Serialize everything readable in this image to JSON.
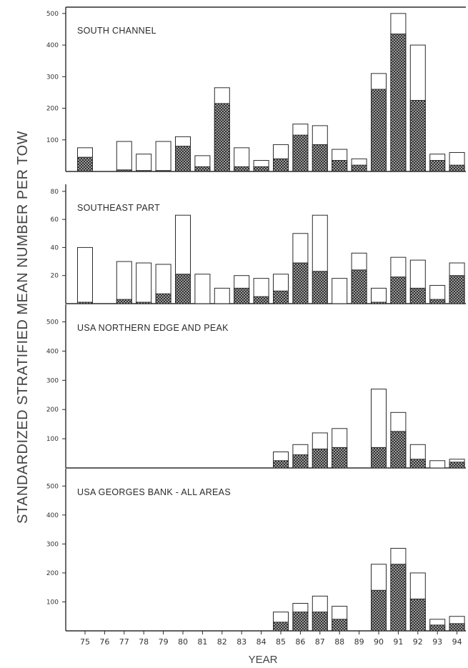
{
  "chart_data": {
    "type": "bar",
    "stacked": true,
    "ylabel": "STANDARDIZED STRATIFIED MEAN NUMBER PER TOW",
    "xlabel": "YEAR",
    "x": [
      "75",
      "76",
      "77",
      "78",
      "79",
      "80",
      "81",
      "82",
      "83",
      "84",
      "85",
      "86",
      "87",
      "88",
      "89",
      "90",
      "91",
      "92",
      "93",
      "94"
    ],
    "series_legend": [
      "hatched (lower portion)",
      "open (total)"
    ],
    "panels": [
      {
        "title": "SOUTH CHANNEL",
        "ylim": [
          0,
          520
        ],
        "yticks": [
          100,
          200,
          300,
          400,
          500
        ],
        "bars": [
          {
            "year": "75",
            "total": 75,
            "hatched": 45
          },
          {
            "year": "77",
            "total": 95,
            "hatched": 5
          },
          {
            "year": "78",
            "total": 55,
            "hatched": 3
          },
          {
            "year": "79",
            "total": 95,
            "hatched": 3
          },
          {
            "year": "80",
            "total": 110,
            "hatched": 80
          },
          {
            "year": "81",
            "total": 50,
            "hatched": 15
          },
          {
            "year": "82",
            "total": 265,
            "hatched": 215
          },
          {
            "year": "83",
            "total": 75,
            "hatched": 15
          },
          {
            "year": "84",
            "total": 35,
            "hatched": 15
          },
          {
            "year": "85",
            "total": 85,
            "hatched": 40
          },
          {
            "year": "86",
            "total": 150,
            "hatched": 115
          },
          {
            "year": "87",
            "total": 145,
            "hatched": 85
          },
          {
            "year": "88",
            "total": 70,
            "hatched": 35
          },
          {
            "year": "89",
            "total": 40,
            "hatched": 20
          },
          {
            "year": "90",
            "total": 310,
            "hatched": 260
          },
          {
            "year": "91",
            "total": 500,
            "hatched": 435
          },
          {
            "year": "92",
            "total": 400,
            "hatched": 225
          },
          {
            "year": "93",
            "total": 55,
            "hatched": 35
          },
          {
            "year": "94",
            "total": 60,
            "hatched": 20
          }
        ]
      },
      {
        "title": "SOUTHEAST PART",
        "ylim": [
          0,
          85
        ],
        "yticks": [
          20,
          40,
          60,
          80
        ],
        "bars": [
          {
            "year": "75",
            "total": 40,
            "hatched": 1
          },
          {
            "year": "77",
            "total": 30,
            "hatched": 3
          },
          {
            "year": "78",
            "total": 29,
            "hatched": 1
          },
          {
            "year": "79",
            "total": 28,
            "hatched": 7
          },
          {
            "year": "80",
            "total": 63,
            "hatched": 21
          },
          {
            "year": "81",
            "total": 21,
            "hatched": 0
          },
          {
            "year": "82",
            "total": 11,
            "hatched": 0
          },
          {
            "year": "83",
            "total": 20,
            "hatched": 11
          },
          {
            "year": "84",
            "total": 18,
            "hatched": 5
          },
          {
            "year": "85",
            "total": 21,
            "hatched": 9
          },
          {
            "year": "86",
            "total": 50,
            "hatched": 29
          },
          {
            "year": "87",
            "total": 63,
            "hatched": 23
          },
          {
            "year": "88",
            "total": 18,
            "hatched": 0
          },
          {
            "year": "89",
            "total": 36,
            "hatched": 24
          },
          {
            "year": "90",
            "total": 11,
            "hatched": 1
          },
          {
            "year": "91",
            "total": 33,
            "hatched": 19
          },
          {
            "year": "92",
            "total": 31,
            "hatched": 11
          },
          {
            "year": "93",
            "total": 13,
            "hatched": 3
          },
          {
            "year": "94",
            "total": 29,
            "hatched": 20
          }
        ]
      },
      {
        "title": "USA NORTHERN EDGE AND PEAK",
        "ylim": [
          0,
          560
        ],
        "yticks": [
          100,
          200,
          300,
          400,
          500
        ],
        "bars": [
          {
            "year": "85",
            "total": 55,
            "hatched": 25
          },
          {
            "year": "86",
            "total": 80,
            "hatched": 45
          },
          {
            "year": "87",
            "total": 120,
            "hatched": 65
          },
          {
            "year": "88",
            "total": 135,
            "hatched": 70
          },
          {
            "year": "90",
            "total": 270,
            "hatched": 70
          },
          {
            "year": "91",
            "total": 190,
            "hatched": 125
          },
          {
            "year": "92",
            "total": 80,
            "hatched": 30
          },
          {
            "year": "93",
            "total": 25,
            "hatched": 0
          },
          {
            "year": "94",
            "total": 30,
            "hatched": 20
          }
        ]
      },
      {
        "title": "USA GEORGES BANK - ALL AREAS",
        "ylim": [
          0,
          560
        ],
        "yticks": [
          100,
          200,
          300,
          400,
          500
        ],
        "bars": [
          {
            "year": "85",
            "total": 65,
            "hatched": 30
          },
          {
            "year": "86",
            "total": 95,
            "hatched": 65
          },
          {
            "year": "87",
            "total": 120,
            "hatched": 65
          },
          {
            "year": "88",
            "total": 85,
            "hatched": 40
          },
          {
            "year": "90",
            "total": 230,
            "hatched": 140
          },
          {
            "year": "91",
            "total": 285,
            "hatched": 230
          },
          {
            "year": "92",
            "total": 200,
            "hatched": 110
          },
          {
            "year": "93",
            "total": 40,
            "hatched": 20
          },
          {
            "year": "94",
            "total": 50,
            "hatched": 25
          }
        ]
      }
    ],
    "colors": {
      "ink": "#2b2b2b",
      "hatch_bg": "#bdbdbd",
      "hatch_line": "#1a1a1a",
      "open_fill": "#ffffff"
    }
  }
}
